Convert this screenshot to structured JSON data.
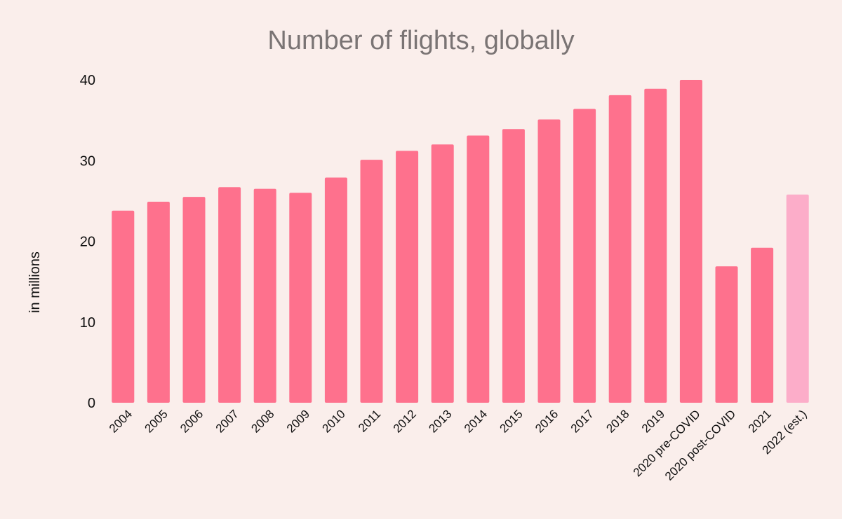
{
  "chart_data": {
    "type": "bar",
    "title": "Number of flights, globally",
    "xlabel": "",
    "ylabel": "in millions",
    "ylim": [
      0,
      40
    ],
    "yticks": [
      0,
      10,
      20,
      30,
      40
    ],
    "grid": false,
    "categories": [
      "2004",
      "2005",
      "2006",
      "2007",
      "2008",
      "2009",
      "2010",
      "2011",
      "2012",
      "2013",
      "2014",
      "2015",
      "2016",
      "2017",
      "2018",
      "2019",
      "2020 pre-COVID",
      "2020 post-COVID",
      "2021",
      "2022 (est.)"
    ],
    "values": [
      23.8,
      24.9,
      25.5,
      26.7,
      26.5,
      26.0,
      27.9,
      30.1,
      31.2,
      32.0,
      33.1,
      33.9,
      35.1,
      36.4,
      38.1,
      38.9,
      40.0,
      16.9,
      19.2,
      25.8
    ],
    "estimated": [
      false,
      false,
      false,
      false,
      false,
      false,
      false,
      false,
      false,
      false,
      false,
      false,
      false,
      false,
      false,
      false,
      false,
      false,
      false,
      true
    ]
  },
  "colors": {
    "background": "#faeeeb",
    "bar": "#fe718d",
    "bar_estimated": "#fcadc9",
    "title": "#7a7474",
    "text": "#111111"
  }
}
